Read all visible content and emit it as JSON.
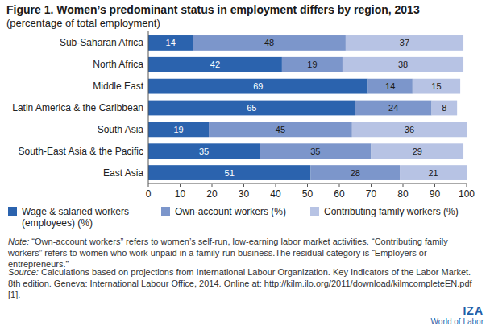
{
  "chart_data": {
    "type": "bar",
    "orientation": "horizontal",
    "stacked": true,
    "data_labels": true,
    "grid": false,
    "title": "Figure 1. Women’s predominant status in employment differs by region, 2013",
    "subtitle": "(percentage of total employment)",
    "categories": [
      "Sub-Saharan Africa",
      "North Africa",
      "Middle East",
      "Latin America & the Caribbean",
      "South Asia",
      "South-East Asia & the Pacific",
      "East Asia"
    ],
    "series": [
      {
        "name": "Wage & salaried workers (employees) (%)",
        "color": "#2b63ae",
        "values": [
          14,
          42,
          69,
          65,
          19,
          35,
          51
        ]
      },
      {
        "name": "Own-account workers (%)",
        "color": "#7c96cb",
        "values": [
          48,
          19,
          14,
          24,
          45,
          35,
          28
        ]
      },
      {
        "name": "Contributing family workers (%)",
        "color": "#b7c3e4",
        "values": [
          37,
          38,
          15,
          8,
          36,
          29,
          21
        ]
      }
    ],
    "xlim": [
      0,
      100
    ],
    "xticks": [
      0,
      10,
      20,
      30,
      40,
      50,
      60,
      70,
      80,
      90,
      100
    ],
    "note": "Note: “Own-account workers” refers to women’s self-run, low-earning labor market activities. “Contributing family workers” refers to women who work unpaid in a family-run business.The residual category is “Employers or entrepreneurs.”",
    "source": "Source: Calculations based on projections from International Labour Organization. Key Indicators of the Labor Market. 8th edition. Geneva: International Labour Office, 2014. Online at: http://kilm.ilo.org/2011/download/kilmcompleteEN.pdf [1].",
    "branding": [
      "IZA",
      "World of Labor"
    ]
  }
}
